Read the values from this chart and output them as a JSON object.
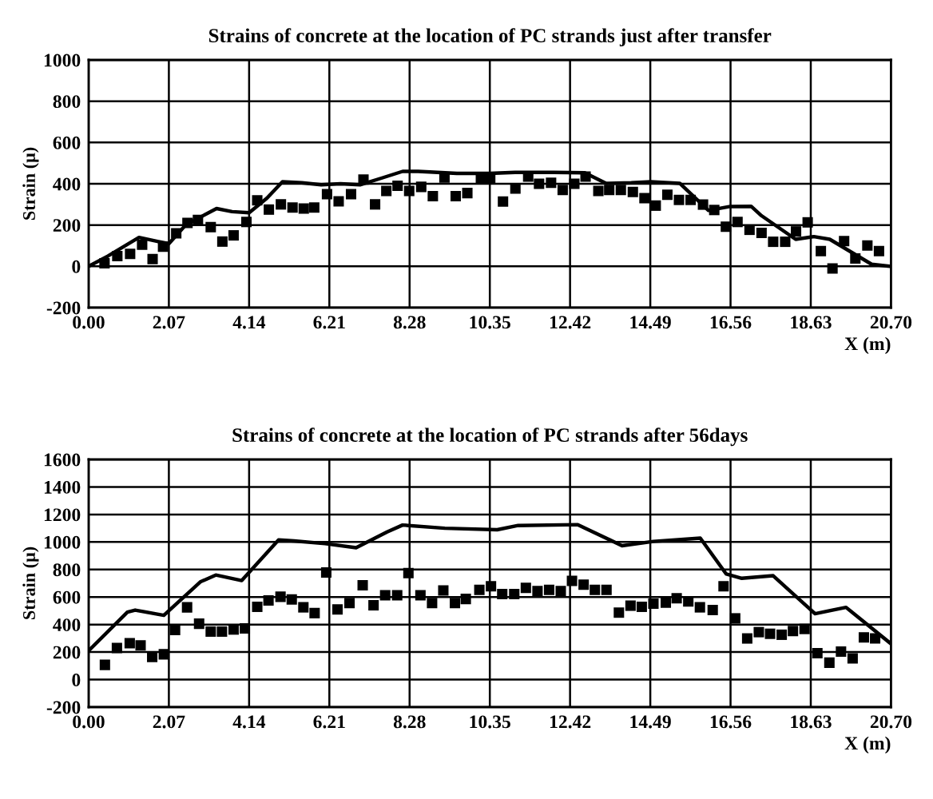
{
  "chart_data": [
    {
      "type": "line",
      "title": "Strains of concrete at the location of PC strands just after transfer",
      "xlabel": "X (m)",
      "ylabel": "Strain (μ)",
      "grid": true,
      "xlim": [
        0,
        20.7
      ],
      "ylim": [
        -200,
        1000
      ],
      "xticks": [
        {
          "value": 0,
          "label": "0.00"
        },
        {
          "value": 2.07,
          "label": "2.07"
        },
        {
          "value": 4.14,
          "label": "4.14"
        },
        {
          "value": 6.21,
          "label": "6.21"
        },
        {
          "value": 8.28,
          "label": "8.28"
        },
        {
          "value": 10.35,
          "label": "10.35"
        },
        {
          "value": 12.42,
          "label": "12.42"
        },
        {
          "value": 14.49,
          "label": "14.49"
        },
        {
          "value": 16.56,
          "label": "16.56"
        },
        {
          "value": 18.63,
          "label": "18.63"
        },
        {
          "value": 20.7,
          "label": "20.70"
        }
      ],
      "yticks": [
        -200,
        0,
        200,
        400,
        600,
        800,
        1000
      ],
      "series": [
        {
          "color": "#000000",
          "marker": "none",
          "line_style": "solid",
          "x": [
            0,
            0.5,
            1.3,
            1.8,
            2.07,
            2.5,
            3.3,
            3.7,
            4.14,
            4.6,
            5.0,
            5.5,
            6.0,
            6.5,
            7.0,
            7.6,
            8.1,
            8.5,
            9.0,
            9.5,
            10.35,
            11.0,
            12.0,
            12.8,
            13.35,
            14.0,
            14.5,
            15.25,
            15.99,
            16.55,
            17.09,
            17.36,
            18.24,
            18.71,
            19.12,
            20.2,
            20.7
          ],
          "values": [
            0,
            50,
            140,
            120,
            110,
            200,
            280,
            265,
            260,
            330,
            410,
            405,
            395,
            400,
            395,
            430,
            460,
            460,
            455,
            450,
            450,
            455,
            455,
            453,
            402,
            405,
            410,
            402,
            271,
            290,
            291,
            245,
            131,
            144,
            131,
            10,
            0
          ]
        },
        {
          "type": "scatter",
          "color": "#000000",
          "marker": "square",
          "x": [
            0.41,
            0.74,
            1.07,
            1.38,
            1.65,
            1.92,
            2.26,
            2.55,
            2.82,
            3.15,
            3.45,
            3.74,
            4.07,
            4.35,
            4.65,
            4.96,
            5.26,
            5.55,
            5.82,
            6.15,
            6.45,
            6.77,
            7.09,
            7.39,
            7.68,
            7.97,
            8.27,
            8.58,
            8.88,
            9.18,
            9.47,
            9.77,
            10.12,
            10.36,
            10.69,
            11.01,
            11.34,
            11.62,
            11.93,
            12.23,
            12.53,
            12.82,
            13.15,
            13.43,
            13.73,
            14.04,
            14.34,
            14.63,
            14.93,
            15.23,
            15.53,
            15.85,
            16.14,
            16.44,
            16.74,
            17.05,
            17.36,
            17.66,
            17.97,
            18.25,
            18.55,
            18.89,
            19.19,
            19.49,
            19.78,
            20.09,
            20.39
          ],
          "values": [
            15,
            50,
            60,
            105,
            35,
            95,
            160,
            210,
            225,
            190,
            120,
            150,
            215,
            320,
            275,
            300,
            285,
            280,
            285,
            350,
            315,
            350,
            420,
            300,
            365,
            390,
            365,
            385,
            340,
            430,
            340,
            355,
            423,
            423,
            314,
            377,
            435,
            400,
            405,
            370,
            400,
            435,
            365,
            370,
            370,
            360,
            330,
            294,
            347,
            322,
            322,
            299,
            273,
            192,
            215,
            177,
            162,
            119,
            119,
            169,
            213,
            74,
            -10,
            122,
            38,
            101,
            74
          ]
        }
      ]
    },
    {
      "type": "line",
      "title": "Strains of concrete at the location of PC strands after 56days",
      "xlabel": "X (m)",
      "ylabel": "Strain (μ)",
      "grid": true,
      "xlim": [
        0,
        20.7
      ],
      "ylim": [
        -200,
        1600
      ],
      "xticks": [
        {
          "value": 0,
          "label": "0.00"
        },
        {
          "value": 2.07,
          "label": "2.07"
        },
        {
          "value": 4.14,
          "label": "4.14"
        },
        {
          "value": 6.21,
          "label": "6.21"
        },
        {
          "value": 8.28,
          "label": "8.28"
        },
        {
          "value": 10.35,
          "label": "10.35"
        },
        {
          "value": 12.42,
          "label": "12.42"
        },
        {
          "value": 14.49,
          "label": "14.49"
        },
        {
          "value": 16.56,
          "label": "16.56"
        },
        {
          "value": 18.63,
          "label": "18.63"
        },
        {
          "value": 20.7,
          "label": "20.70"
        }
      ],
      "yticks": [
        -200,
        0,
        200,
        400,
        600,
        800,
        1000,
        1200,
        1400,
        1600
      ],
      "series": [
        {
          "color": "#000000",
          "marker": "none",
          "line_style": "solid",
          "x": [
            0,
            1.0,
            1.2,
            1.94,
            2.88,
            3.28,
            3.95,
            4.9,
            5.3,
            6.1,
            6.9,
            7.7,
            8.1,
            9.19,
            10.54,
            11.08,
            12.62,
            13.76,
            14.57,
            15.78,
            16.45,
            16.85,
            17.66,
            18.74,
            19.54,
            20.7
          ],
          "values": [
            210,
            490,
            505,
            467,
            710,
            760,
            720,
            1015,
            1008,
            988,
            958,
            1073,
            1123,
            1100,
            1089,
            1120,
            1126,
            973,
            1004,
            1028,
            767,
            736,
            755,
            479,
            525,
            260
          ]
        },
        {
          "type": "scatter",
          "color": "#000000",
          "marker": "square",
          "x": [
            0.42,
            0.73,
            1.06,
            1.34,
            1.64,
            1.94,
            2.23,
            2.54,
            2.85,
            3.15,
            3.44,
            3.74,
            4.03,
            4.35,
            4.64,
            4.95,
            5.24,
            5.54,
            5.83,
            6.13,
            6.42,
            6.73,
            7.07,
            7.35,
            7.65,
            7.96,
            8.25,
            8.56,
            8.86,
            9.15,
            9.45,
            9.73,
            10.08,
            10.38,
            10.67,
            10.98,
            11.28,
            11.58,
            11.88,
            12.18,
            12.47,
            12.77,
            13.06,
            13.36,
            13.68,
            13.98,
            14.27,
            14.57,
            14.89,
            15.17,
            15.47,
            15.77,
            16.1,
            16.38,
            16.68,
            16.99,
            17.29,
            17.58,
            17.88,
            18.17,
            18.47,
            18.8,
            19.11,
            19.41,
            19.71,
            20.0,
            20.29
          ],
          "values": [
            107,
            230,
            264,
            249,
            165,
            184,
            360,
            525,
            406,
            349,
            349,
            364,
            372,
            529,
            575,
            602,
            582,
            525,
            483,
            778,
            510,
            556,
            686,
            540,
            613,
            613,
            774,
            613,
            556,
            648,
            556,
            586,
            652,
            678,
            621,
            621,
            667,
            644,
            652,
            644,
            717,
            690,
            652,
            652,
            487,
            537,
            529,
            552,
            560,
            591,
            568,
            525,
            506,
            678,
            445,
            299,
            345,
            333,
            326,
            353,
            368,
            192,
            123,
            203,
            154,
            307,
            299
          ]
        }
      ]
    }
  ]
}
